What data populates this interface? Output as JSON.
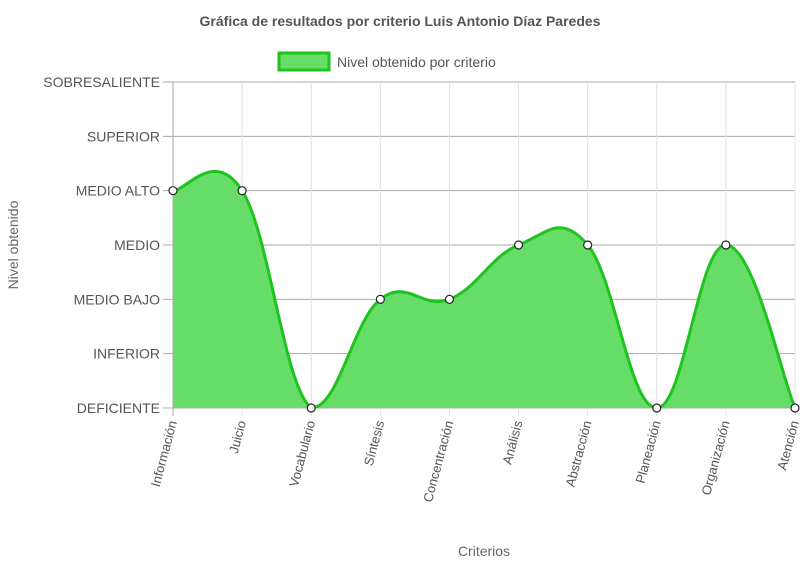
{
  "chart_data": {
    "type": "area",
    "title": "Gráfica de resultados por criterio Luis Antonio Díaz Paredes",
    "xlabel": "Criterios",
    "ylabel": "Nivel obtenido",
    "y_levels": [
      "DEFICIENTE",
      "INFERIOR",
      "MEDIO BAJO",
      "MEDIO",
      "MEDIO ALTO",
      "SUPERIOR",
      "SOBRESALIENTE"
    ],
    "ylim": [
      0,
      6
    ],
    "categories": [
      "Información",
      "Juicio",
      "Vocabulario",
      "Síntesis",
      "Concentración",
      "Análisis",
      "Abstracción",
      "Planeación",
      "Organización",
      "Atención"
    ],
    "series": [
      {
        "name": "Nivel obtenido por criterio",
        "values": [
          4,
          4,
          0,
          2,
          2,
          3,
          3,
          0,
          3,
          0
        ]
      }
    ],
    "colors": {
      "line": "#1ec41e",
      "fill": "#66dd66",
      "grid": "#e0e0e0",
      "axis": "#aaaaaa"
    },
    "grid": true,
    "legend_position": "top"
  }
}
